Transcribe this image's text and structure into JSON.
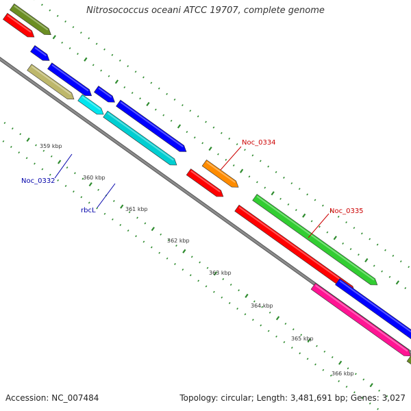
{
  "title": "Nitrosococcus oceani ATCC 19707, complete genome",
  "footer": {
    "accession": "Accession: NC_007484",
    "summary": "Topology: circular; Length: 3,481,691 bp; Genes: 3,027"
  },
  "colors": {
    "background": "#ffffff",
    "backbone": "#8c8c8c",
    "tick": "#2e8b2e",
    "label_blue": "#0000aa",
    "label_red": "#cc0000"
  },
  "scale_labels": [
    "359 kbp",
    "360 kbp",
    "361 kbp",
    "362 kbp",
    "363 kbp",
    "364 kbp",
    "365 kbp",
    "366 kbp"
  ],
  "gene_labels": [
    {
      "text": "Noc_0332",
      "color": "#0000aa"
    },
    {
      "text": "rbcL",
      "color": "#0000aa"
    },
    {
      "text": "Noc_0334",
      "color": "#cc0000"
    },
    {
      "text": "Noc_0335",
      "color": "#cc0000"
    }
  ],
  "genes": [
    {
      "color": "#6b8e23"
    },
    {
      "color": "#ff0000"
    },
    {
      "color": "#0000ff"
    },
    {
      "color": "#0000ff"
    },
    {
      "color": "#bdb76b"
    },
    {
      "color": "#0000ff"
    },
    {
      "color": "#00e5ee"
    },
    {
      "color": "#00ced1"
    },
    {
      "color": "#0000ff"
    },
    {
      "color": "#ff8c00"
    },
    {
      "color": "#ff0000"
    },
    {
      "color": "#32cd32"
    },
    {
      "color": "#ff0000"
    },
    {
      "color": "#0000ff"
    },
    {
      "color": "#ff1493"
    },
    {
      "color": "#6b8e23"
    }
  ]
}
